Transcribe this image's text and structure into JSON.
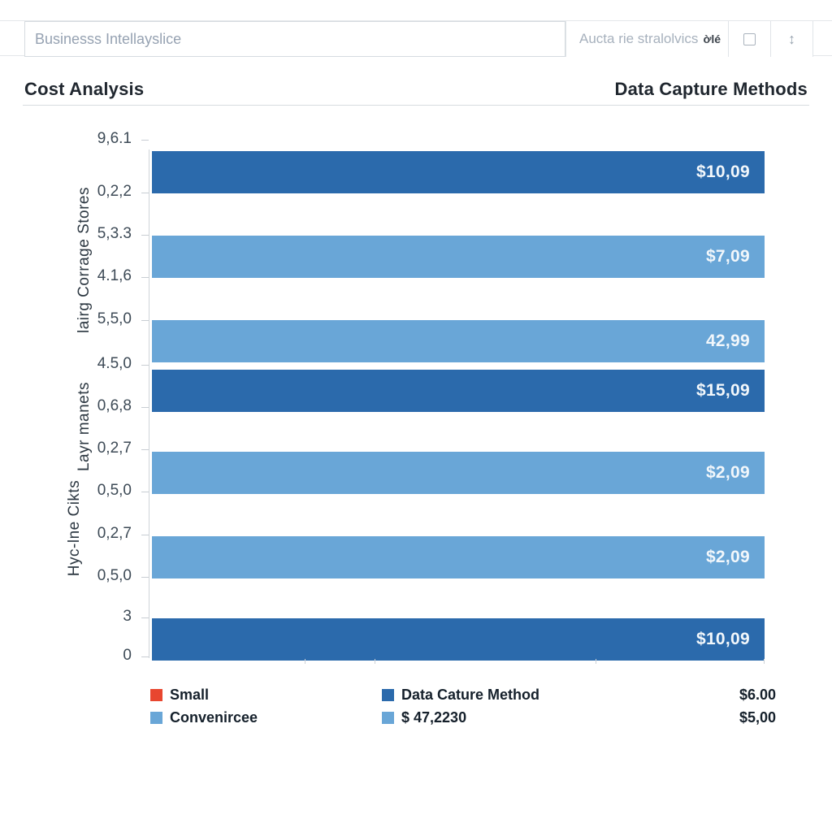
{
  "topbar": {
    "search_value": "Businesss Intellayslice",
    "toolbar_label": "Aucta rie stralolvics",
    "toolbar_glyph": "ờlé",
    "sort_icon_glyph": "↕"
  },
  "header": {
    "left_title": "Cost Analysis",
    "right_title": "Data Capture Methods"
  },
  "colors": {
    "dark_blue": "#2b6aac",
    "light_blue": "#69a6d7",
    "red": "#e8462f"
  },
  "chart_data": {
    "type": "bar",
    "orientation": "horizontal",
    "title": "Cost Analysis",
    "subtitle": "Data Capture Methods",
    "axis_label_groups": [
      "lairg Corrage Stores",
      "Layr manets",
      "Hyc-lne Cikts"
    ],
    "y_tick_labels": [
      "9,6.1",
      "0,2,2",
      "5,3.3",
      "4.1,6",
      "5,5,0",
      "4.5,0",
      "0,6,8",
      "0,2,7",
      "0,5,0",
      "0,2,7",
      "0,5,0",
      "3",
      "0"
    ],
    "grid": false,
    "legend_position": "bottom",
    "bars": [
      {
        "label": "$10,09",
        "color": "dark_blue",
        "length_pct": 100
      },
      {
        "label": "$7,09",
        "color": "light_blue",
        "length_pct": 100
      },
      {
        "label": "42,99",
        "color": "light_blue",
        "length_pct": 100
      },
      {
        "label": "$15,09",
        "color": "dark_blue",
        "length_pct": 100
      },
      {
        "label": "$2,09",
        "color": "light_blue",
        "length_pct": 100
      },
      {
        "label": "$2,09",
        "color": "light_blue",
        "length_pct": 100
      },
      {
        "label": "$10,09",
        "color": "dark_blue",
        "length_pct": 100
      }
    ],
    "legend": {
      "col1": [
        {
          "swatch": "red",
          "label": "Small"
        },
        {
          "swatch": "light_blue",
          "label": "Convenircee"
        }
      ],
      "col2": [
        {
          "swatch": "dark_blue",
          "label": "Data Cature Method"
        },
        {
          "swatch": "light_blue",
          "label": "$ 47,2230"
        }
      ],
      "col3": [
        "$6.00",
        "$5,00"
      ]
    }
  }
}
